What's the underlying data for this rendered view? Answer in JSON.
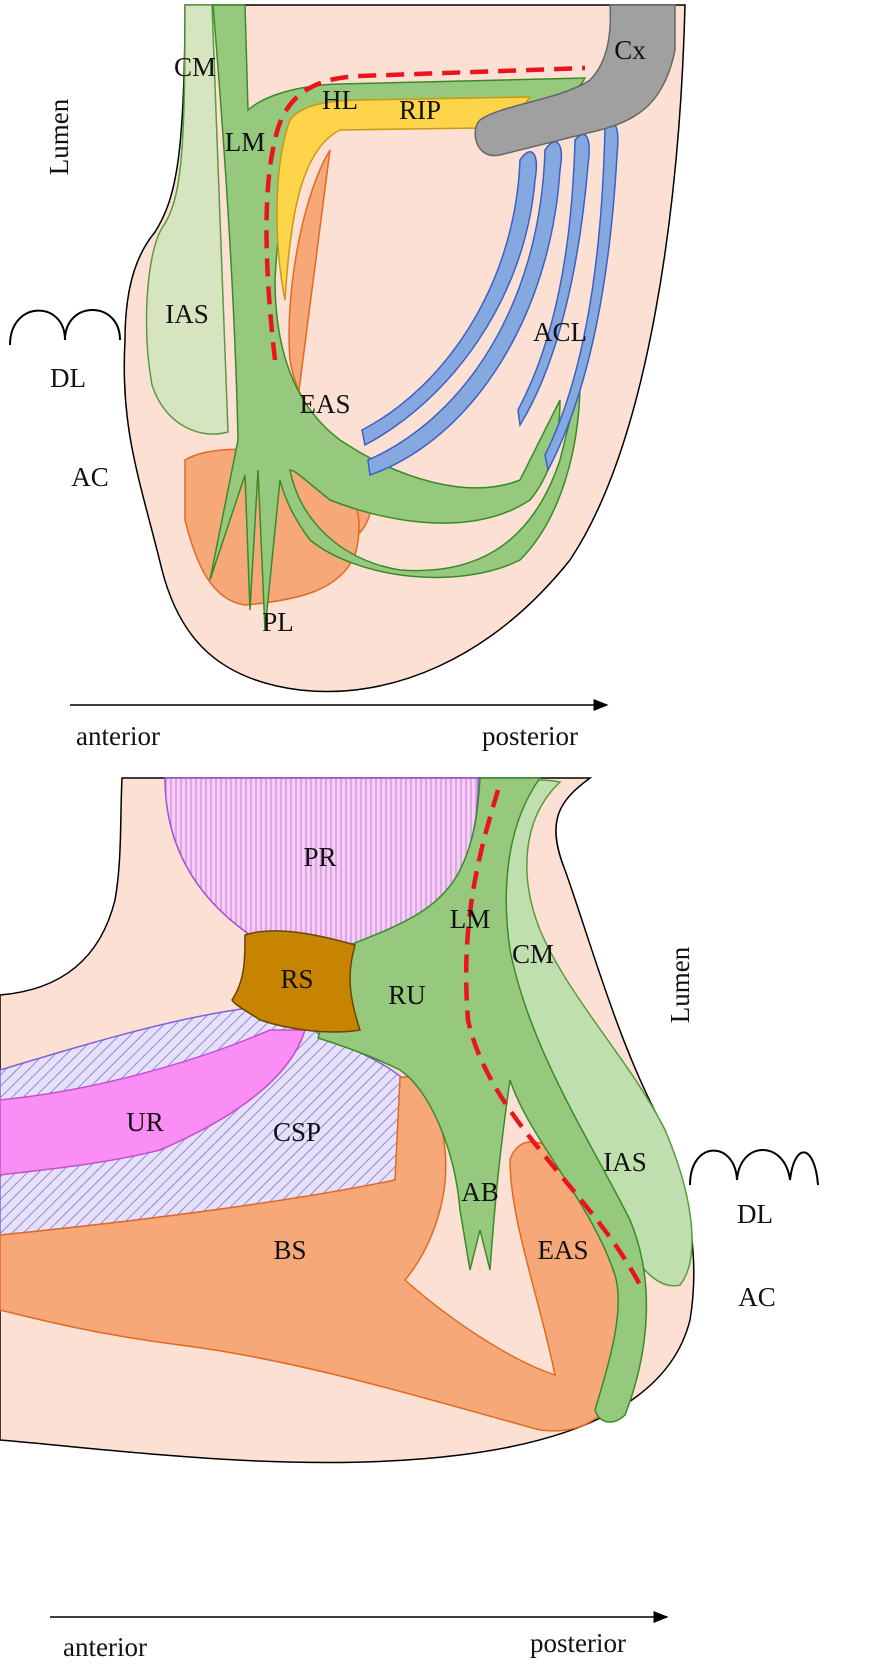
{
  "top": {
    "labels": {
      "cm": "CM",
      "lm": "LM",
      "hl": "HL",
      "rip": "RIP",
      "cx": "Cx",
      "lumen": "Lumen",
      "ias": "IAS",
      "dl": "DL",
      "acl": "ACL",
      "eas": "EAS",
      "ac": "AC",
      "pl": "PL"
    },
    "axis": {
      "left": "anterior",
      "right": "posterior"
    }
  },
  "bottom": {
    "labels": {
      "pr": "PR",
      "lm": "LM",
      "cm": "CM",
      "rs": "RS",
      "ru": "RU",
      "lumen": "Lumen",
      "ur": "UR",
      "csp": "CSP",
      "ias": "IAS",
      "ab": "AB",
      "dl": "DL",
      "bs": "BS",
      "eas": "EAS",
      "ac": "AC"
    },
    "axis": {
      "left": "anterior",
      "right": "posterior"
    }
  }
}
